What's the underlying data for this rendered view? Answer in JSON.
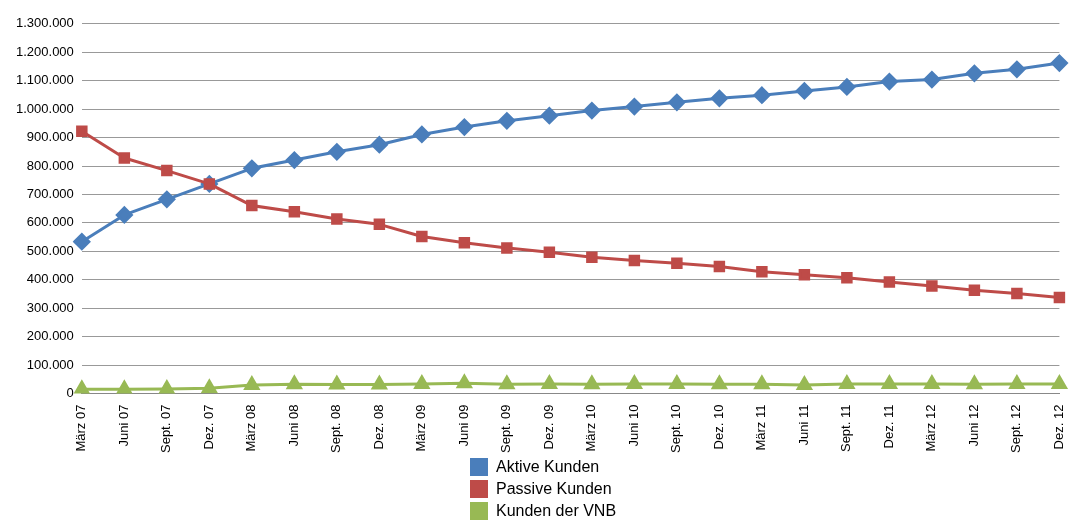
{
  "chart_data": {
    "type": "line",
    "categories": [
      "März 07",
      "Juni 07",
      "Sept. 07",
      "Dez. 07",
      "März 08",
      "Juni 08",
      "Sept. 08",
      "Dez. 08",
      "März 09",
      "Juni 09",
      "Sept. 09",
      "Dez. 09",
      "März 10",
      "Juni 10",
      "Sept. 10",
      "Dez. 10",
      "März 11",
      "Juni 11",
      "Sept. 11",
      "Dez. 11",
      "März 12",
      "Juni 12",
      "Sept. 12",
      "Dez. 12"
    ],
    "series": [
      {
        "name": "Aktive Kunden",
        "color": "#4a7ebb",
        "marker": "diamond",
        "values": [
          534000,
          628000,
          683000,
          737000,
          792000,
          821000,
          850000,
          875000,
          911000,
          937000,
          959000,
          977000,
          995000,
          1009000,
          1024000,
          1038000,
          1049000,
          1064000,
          1078000,
          1097000,
          1104000,
          1126000,
          1140000,
          1162000
        ]
      },
      {
        "name": "Passive Kunden",
        "color": "#be4b48",
        "marker": "square",
        "values": [
          922000,
          828000,
          784000,
          737000,
          661000,
          639000,
          614000,
          595000,
          552000,
          530000,
          512000,
          497000,
          479000,
          468000,
          458000,
          447000,
          428000,
          418000,
          407000,
          392000,
          378000,
          363000,
          352000,
          338000
        ]
      },
      {
        "name": "Kunden der VNB",
        "color": "#98b954",
        "marker": "triangle",
        "values": [
          15000,
          15000,
          16000,
          19000,
          30000,
          33000,
          32000,
          32000,
          34000,
          36000,
          33000,
          34000,
          33000,
          34000,
          34000,
          33000,
          33000,
          30000,
          34000,
          34000,
          34000,
          33000,
          34000,
          34000
        ]
      }
    ],
    "ylim": [
      0,
      1300000
    ],
    "yticks": [
      {
        "value": 0,
        "label": "0"
      },
      {
        "value": 100000,
        "label": "100.000"
      },
      {
        "value": 200000,
        "label": "200.000"
      },
      {
        "value": 300000,
        "label": "300.000"
      },
      {
        "value": 400000,
        "label": "400.000"
      },
      {
        "value": 500000,
        "label": "500.000"
      },
      {
        "value": 600000,
        "label": "600.000"
      },
      {
        "value": 700000,
        "label": "700.000"
      },
      {
        "value": 800000,
        "label": "800.000"
      },
      {
        "value": 900000,
        "label": "900.000"
      },
      {
        "value": 1000000,
        "label": "1.000.000"
      },
      {
        "value": 1100000,
        "label": "1.100.000"
      },
      {
        "value": 1200000,
        "label": "1.200.000"
      },
      {
        "value": 1300000,
        "label": "1.300.000"
      }
    ],
    "grid": "y",
    "legend": "bottom",
    "line_style": "solid"
  }
}
